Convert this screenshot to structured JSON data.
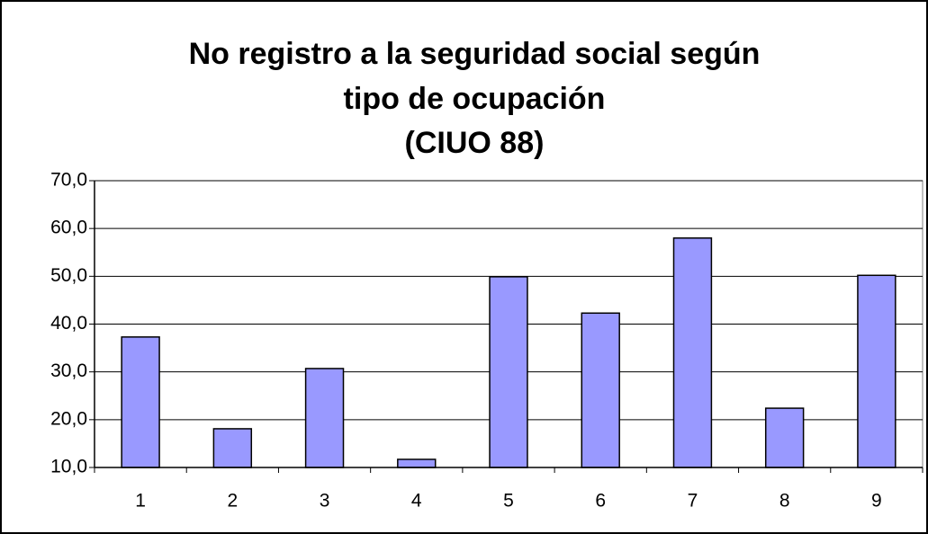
{
  "chart_data": {
    "type": "bar",
    "title": [
      "No registro a la seguridad social según",
      "tipo de ocupación",
      "(CIUO 88)"
    ],
    "categories": [
      "1",
      "2",
      "3",
      "4",
      "5",
      "6",
      "7",
      "8",
      "9"
    ],
    "values": [
      37.3,
      18.1,
      30.7,
      11.7,
      49.9,
      42.3,
      58.0,
      22.4,
      50.2
    ],
    "color": "#9999ff",
    "ylim": [
      10,
      70
    ],
    "yticks": [
      {
        "value": 10,
        "label": "10,0"
      },
      {
        "value": 20,
        "label": "20,0"
      },
      {
        "value": 30,
        "label": "30,0"
      },
      {
        "value": 40,
        "label": "40,0"
      },
      {
        "value": 50,
        "label": "50,0"
      },
      {
        "value": 60,
        "label": "60,0"
      },
      {
        "value": 70,
        "label": "70,0"
      }
    ],
    "grid": true
  }
}
